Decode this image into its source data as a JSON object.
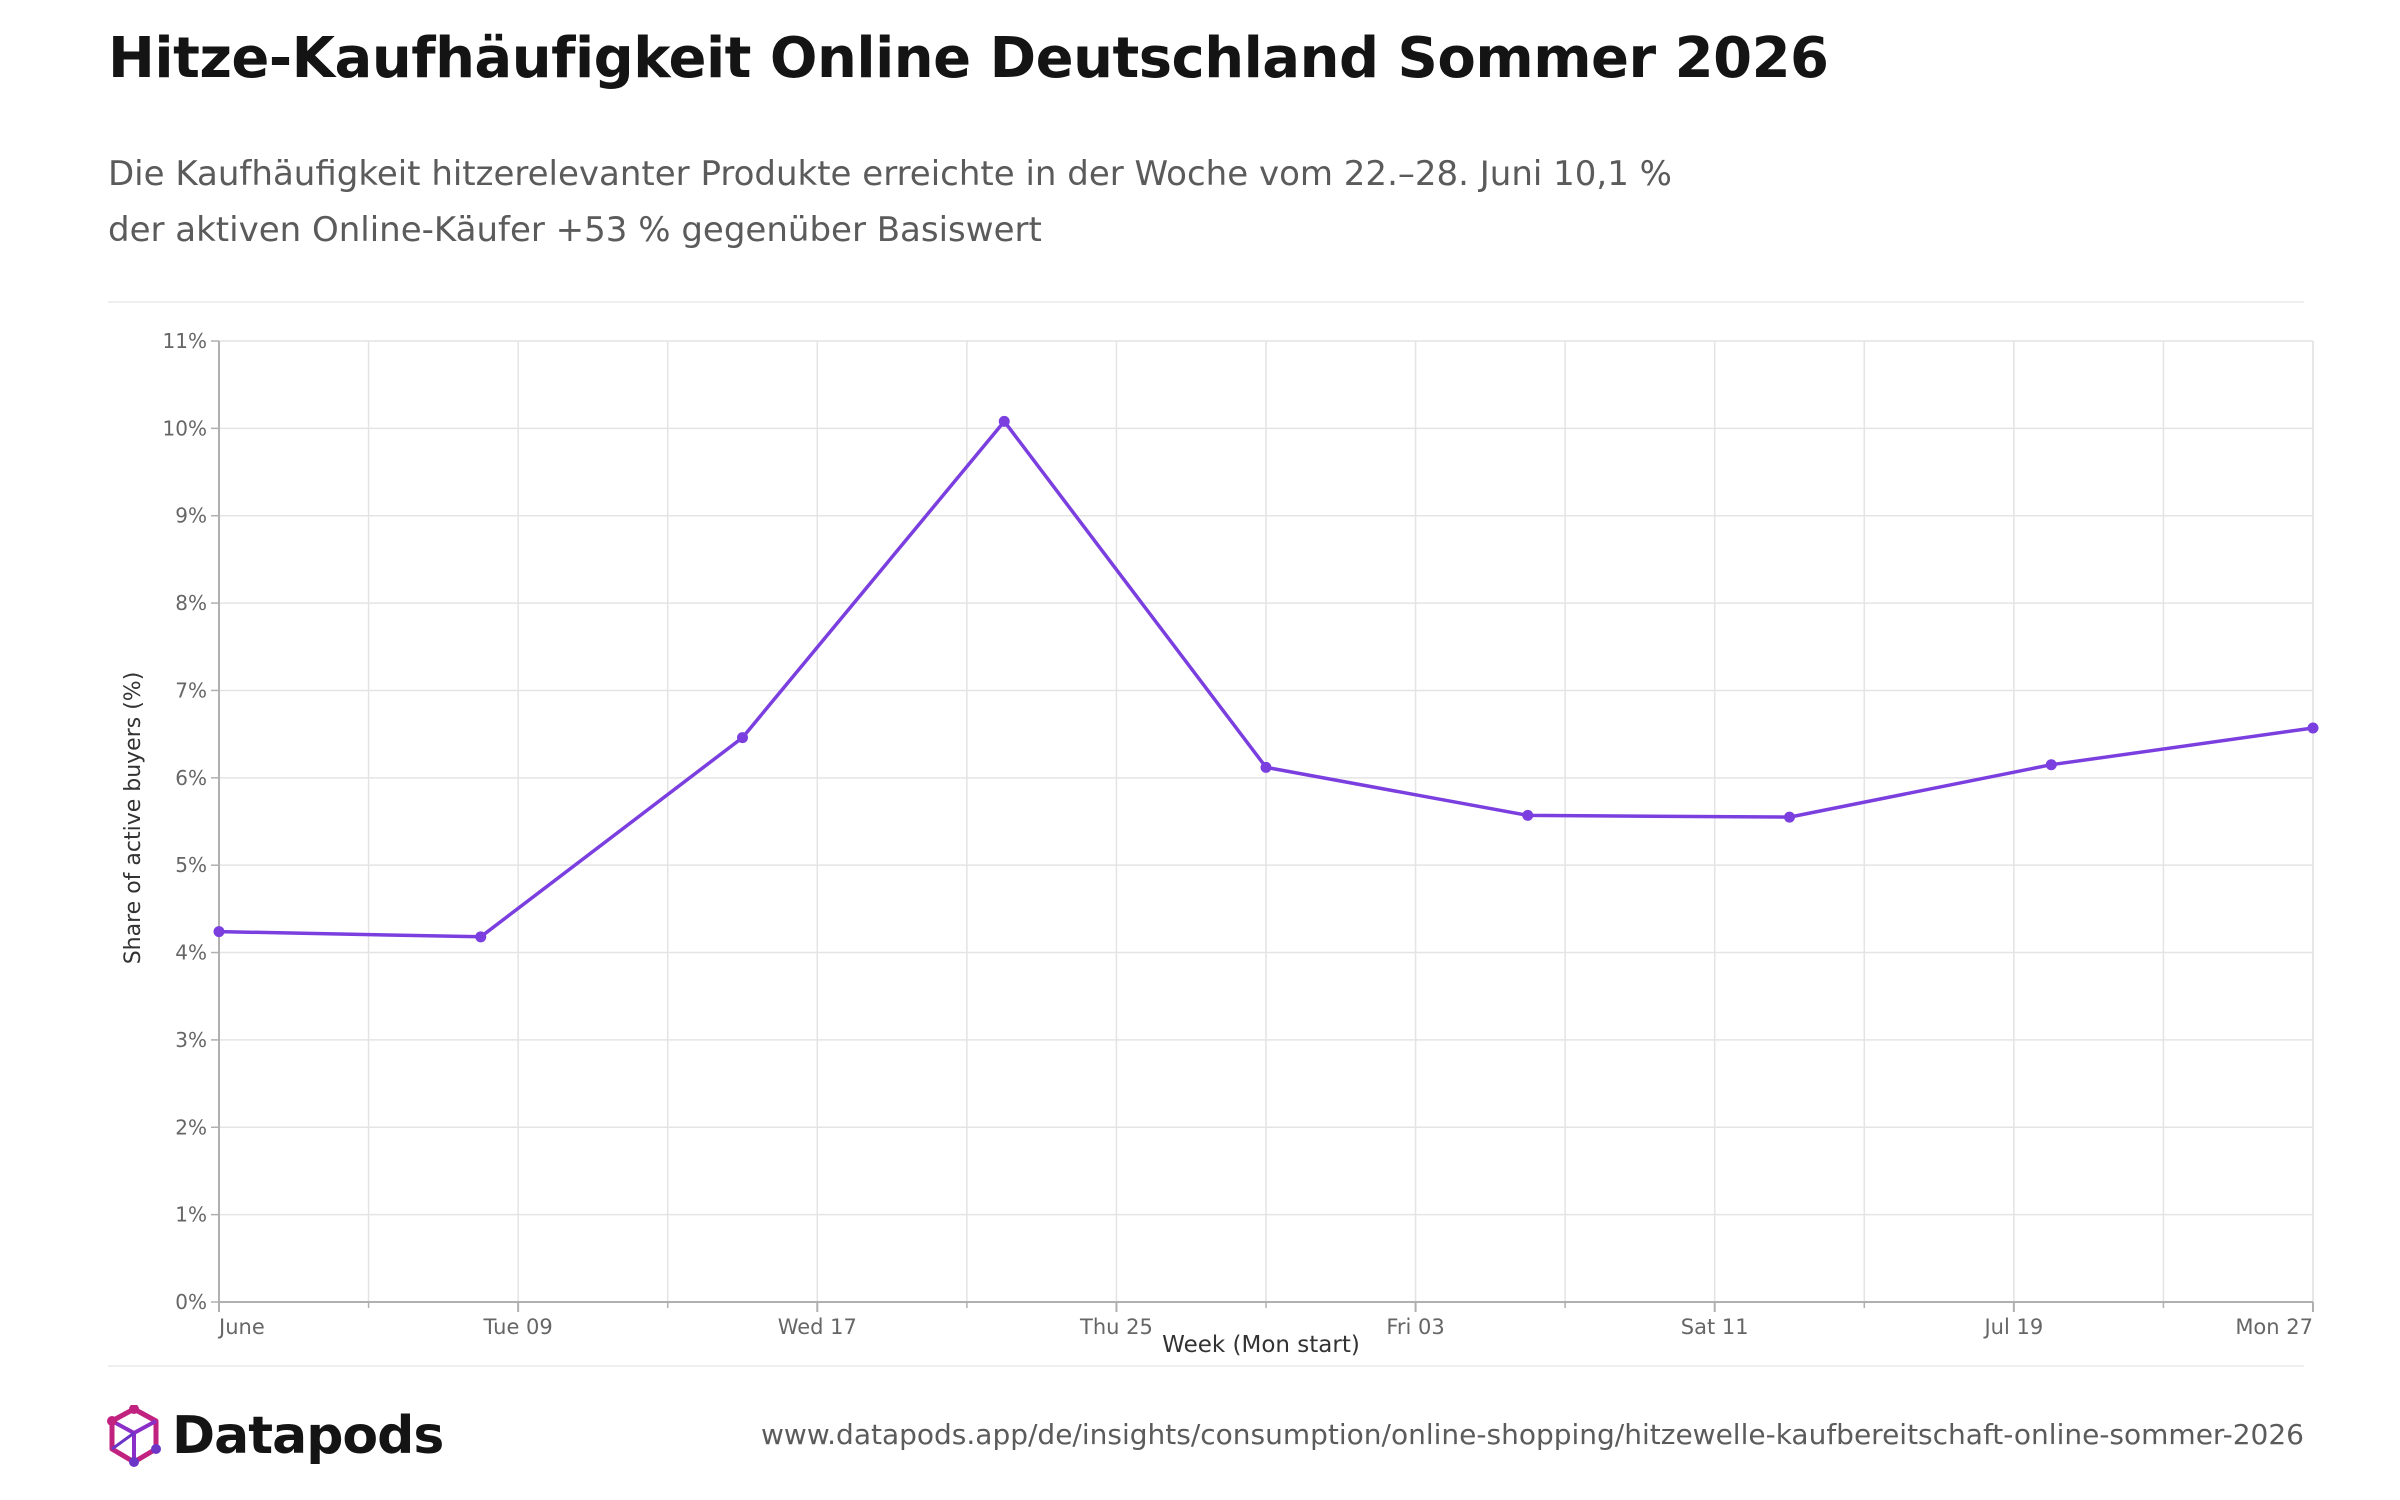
{
  "header": {
    "title": "Hitze-Kaufhäufigkeit Online Deutschland Sommer 2026",
    "subtitle_line1": "Die Kaufhäufigkeit hitzerelevanter Produkte erreichte in der Woche vom 22.–28. Juni 10,1 %",
    "subtitle_line2": "der aktiven Online-Käufer +53 % gegenüber Basiswert"
  },
  "footer": {
    "brand": "Datapods",
    "source_url": "www.datapods.app/de/insights/consumption/online-shopping/hitzewelle-kaufbereitschaft-online-sommer-2026"
  },
  "colors": {
    "line": "#7b3fe0",
    "grid": "#e4e4e4",
    "axis": "#b0b0b0",
    "tick_text": "#666666",
    "logo_magenta": "#c2227f",
    "logo_purple": "#6b35c7"
  },
  "chart_data": {
    "type": "line",
    "xlabel": "Week (Mon start)",
    "ylabel": "Share of active buyers (%)",
    "ylim": [
      0,
      11
    ],
    "yticks": [
      "0%",
      "1%",
      "2%",
      "3%",
      "4%",
      "5%",
      "6%",
      "7%",
      "8%",
      "9%",
      "10%",
      "11%"
    ],
    "xlim": [
      "2026-06-01",
      "2026-07-27"
    ],
    "x_tick_labels": [
      {
        "date": "2026-06-01",
        "label": "June"
      },
      {
        "date": "2026-06-09",
        "label": "Tue 09"
      },
      {
        "date": "2026-06-17",
        "label": "Wed 17"
      },
      {
        "date": "2026-06-25",
        "label": "Thu 25"
      },
      {
        "date": "2026-07-03",
        "label": "Fri 03"
      },
      {
        "date": "2026-07-11",
        "label": "Sat 11"
      },
      {
        "date": "2026-07-19",
        "label": "Jul 19"
      },
      {
        "date": "2026-07-27",
        "label": "Mon 27"
      }
    ],
    "grid": true,
    "series": [
      {
        "points": [
          {
            "x": "2026-06-01",
            "y": 4.24
          },
          {
            "x": "2026-06-08",
            "y": 4.18
          },
          {
            "x": "2026-06-15",
            "y": 6.46
          },
          {
            "x": "2026-06-22",
            "y": 10.08
          },
          {
            "x": "2026-06-29",
            "y": 6.12
          },
          {
            "x": "2026-07-06",
            "y": 5.57
          },
          {
            "x": "2026-07-13",
            "y": 5.55
          },
          {
            "x": "2026-07-20",
            "y": 6.15
          },
          {
            "x": "2026-07-27",
            "y": 6.57
          }
        ]
      }
    ]
  }
}
